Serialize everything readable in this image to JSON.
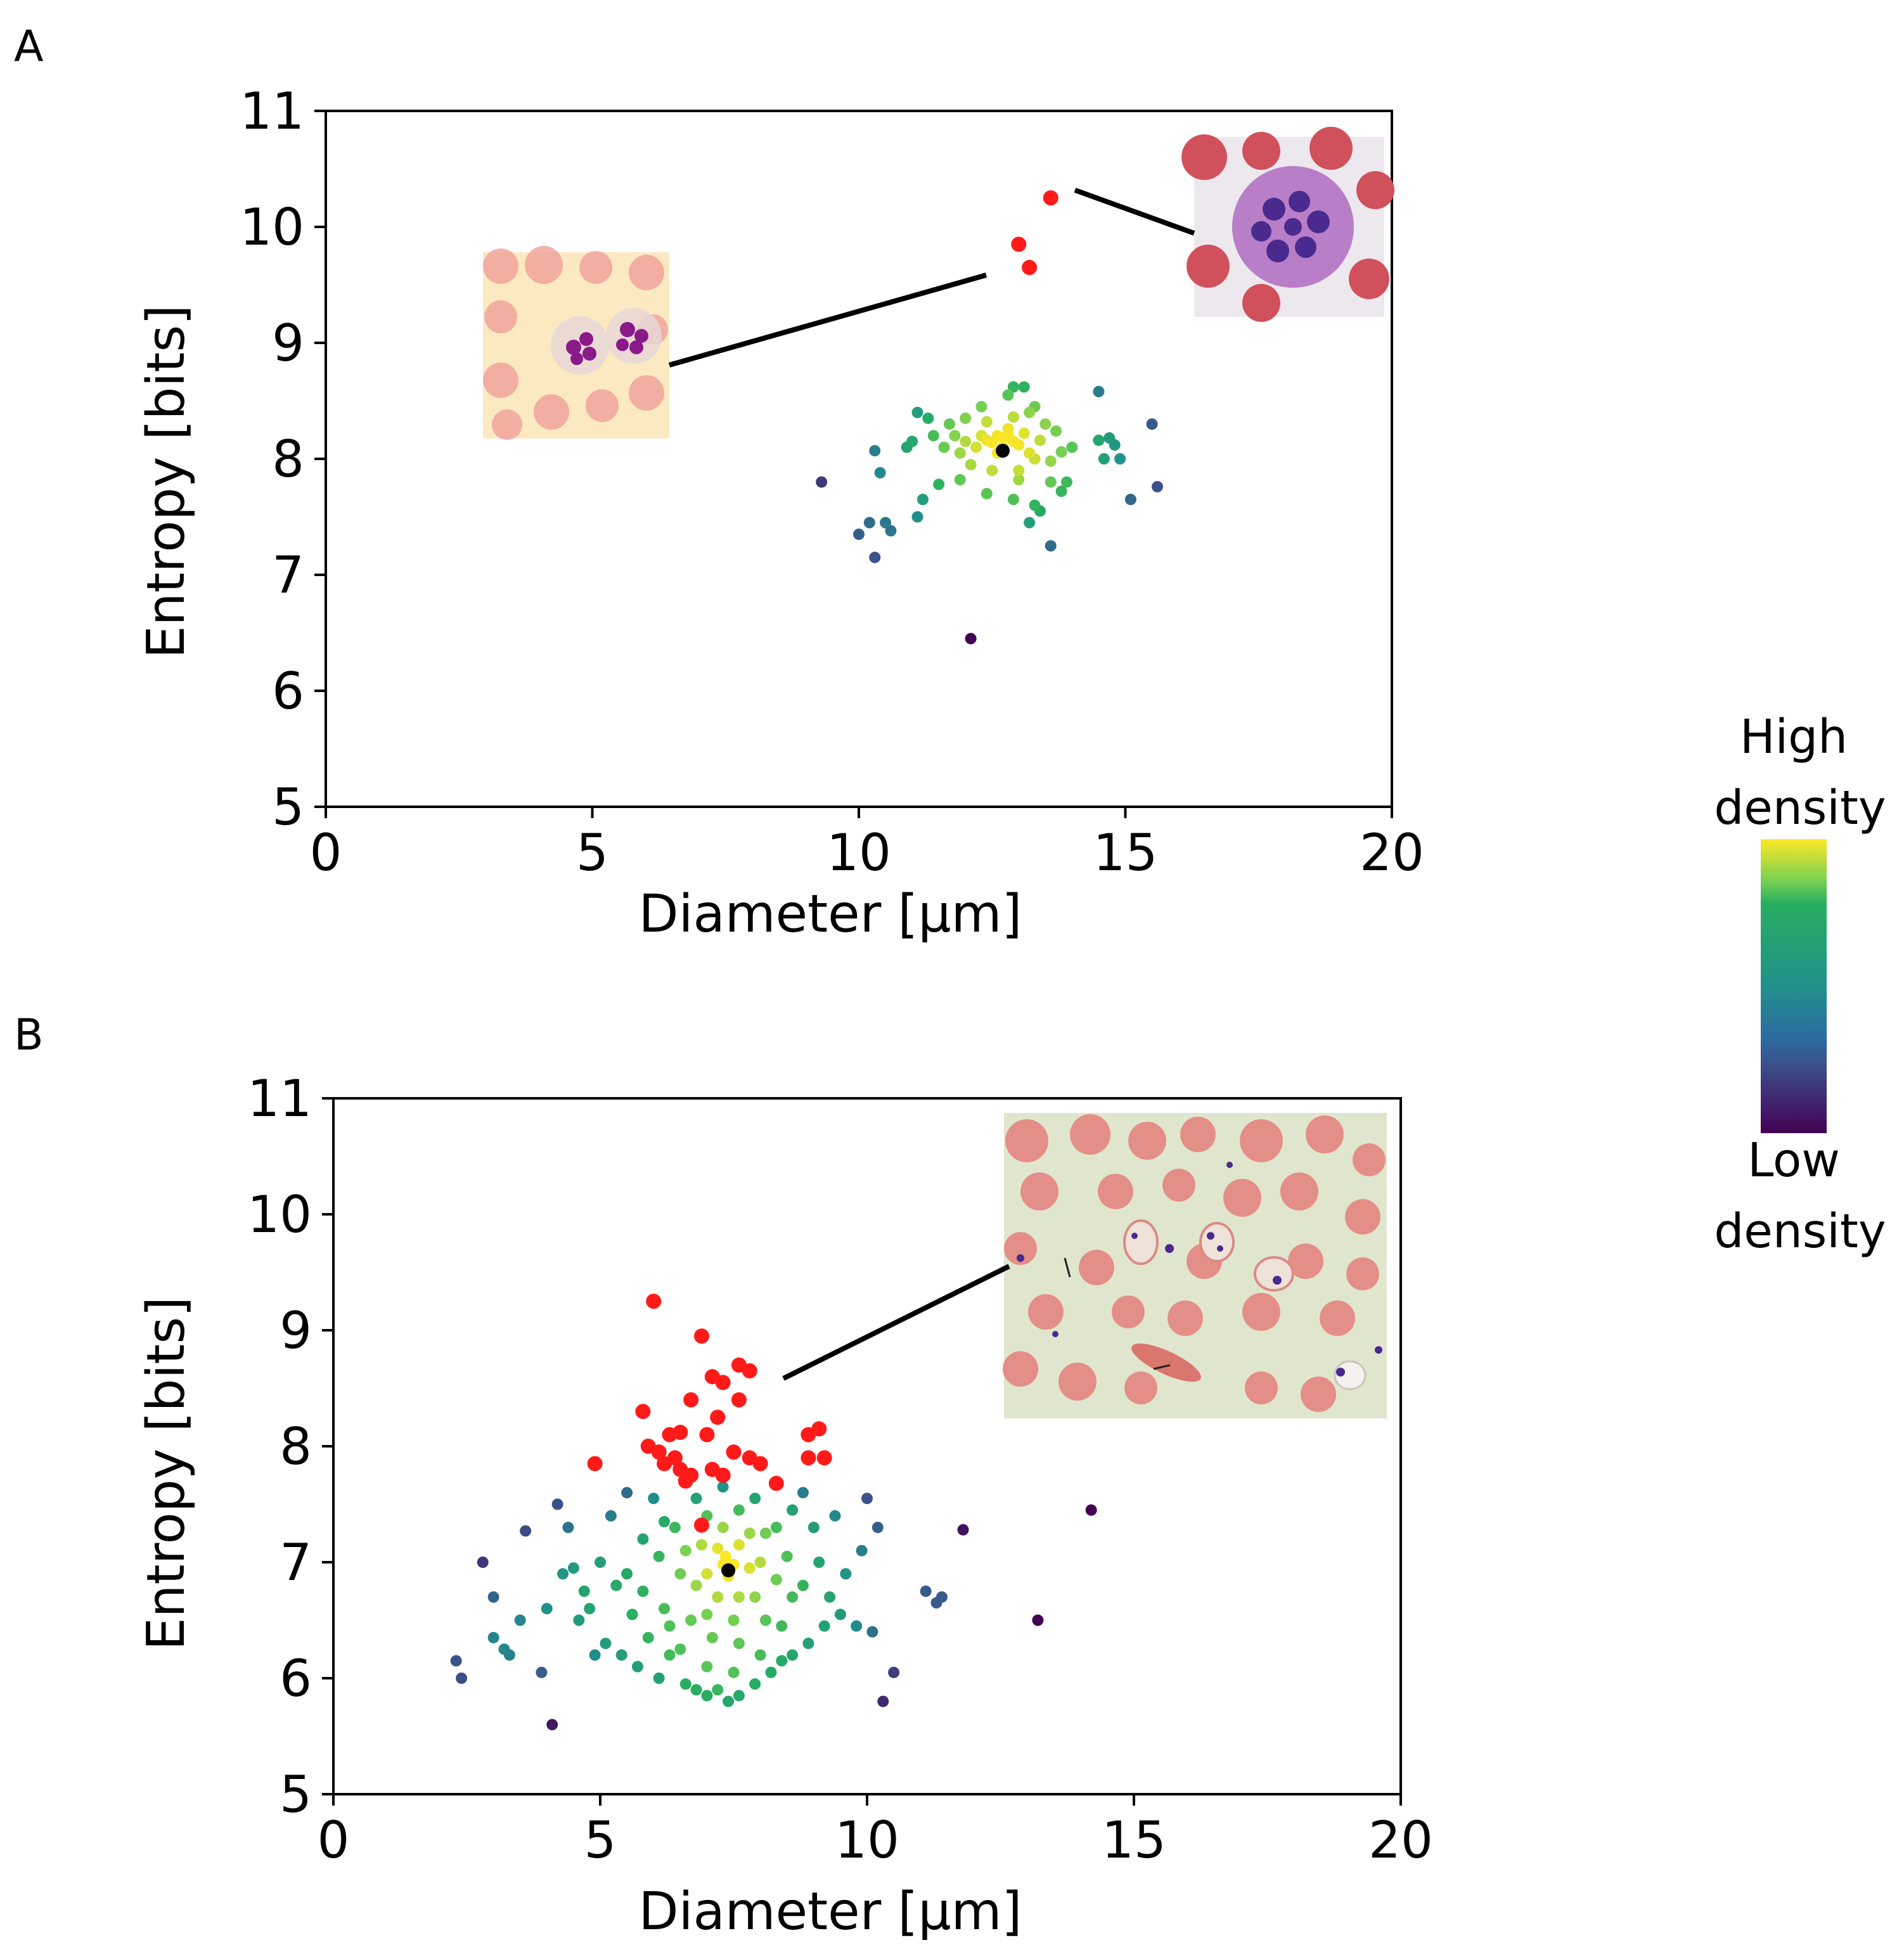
{
  "chart_data": [
    {
      "type": "scatter",
      "panel_label": "A",
      "xlabel": "Diameter [µm]",
      "ylabel": "Entropy [bits]",
      "xlim": [
        0,
        20
      ],
      "ylim": [
        5,
        11
      ],
      "xticks": [
        "0",
        "5",
        "10",
        "15",
        "20"
      ],
      "yticks": [
        "5",
        "6",
        "7",
        "8",
        "9",
        "10",
        "11"
      ],
      "grid": false,
      "series": [
        {
          "points": [
            [
              12.8,
              8.22
            ],
            [
              12.7,
              8.18
            ],
            [
              12.9,
              8.15
            ],
            [
              12.6,
              8.2
            ],
            [
              12.5,
              8.14
            ],
            [
              12.7,
              8.1
            ],
            [
              12.4,
              8.16
            ],
            [
              13.0,
              8.12
            ],
            [
              12.3,
              8.2
            ],
            [
              12.8,
              8.26
            ],
            [
              12.6,
              8.05
            ],
            [
              13.1,
              8.22
            ],
            [
              12.0,
              8.15
            ],
            [
              13.2,
              8.05
            ],
            [
              12.2,
              8.1
            ],
            [
              11.8,
              8.2
            ],
            [
              13.4,
              8.16
            ],
            [
              12.4,
              8.32
            ],
            [
              12.9,
              8.36
            ],
            [
              13.5,
              8.3
            ],
            [
              11.9,
              8.05
            ],
            [
              13.6,
              7.98
            ],
            [
              12.1,
              7.95
            ],
            [
              13.3,
              8.0
            ],
            [
              11.6,
              8.1
            ],
            [
              13.8,
              8.06
            ],
            [
              12.5,
              7.9
            ],
            [
              13.0,
              7.9
            ],
            [
              11.7,
              8.3
            ],
            [
              13.7,
              8.24
            ],
            [
              12.0,
              8.35
            ],
            [
              13.2,
              8.4
            ],
            [
              11.4,
              8.2
            ],
            [
              14.0,
              8.1
            ],
            [
              11.3,
              8.35
            ],
            [
              11.1,
              8.4
            ],
            [
              12.3,
              8.45
            ],
            [
              12.8,
              8.55
            ],
            [
              12.9,
              8.62
            ],
            [
              13.1,
              8.62
            ],
            [
              13.3,
              8.45
            ],
            [
              11.0,
              8.15
            ],
            [
              10.3,
              8.07
            ],
            [
              10.9,
              8.1
            ],
            [
              10.4,
              7.88
            ],
            [
              11.2,
              7.65
            ],
            [
              11.5,
              7.78
            ],
            [
              11.1,
              7.5
            ],
            [
              11.9,
              7.82
            ],
            [
              12.4,
              7.7
            ],
            [
              12.9,
              7.65
            ],
            [
              13.3,
              7.6
            ],
            [
              13.0,
              7.82
            ],
            [
              13.6,
              7.8
            ],
            [
              13.8,
              7.72
            ],
            [
              13.9,
              7.8
            ],
            [
              13.2,
              7.45
            ],
            [
              13.4,
              7.55
            ],
            [
              14.5,
              8.16
            ],
            [
              14.6,
              8.0
            ],
            [
              14.8,
              8.12
            ],
            [
              14.9,
              8.0
            ],
            [
              14.7,
              8.18
            ],
            [
              14.5,
              8.58
            ],
            [
              15.5,
              8.3
            ],
            [
              15.6,
              7.76
            ],
            [
              15.1,
              7.65
            ],
            [
              10.2,
              7.45
            ],
            [
              10.0,
              7.35
            ],
            [
              10.5,
              7.45
            ],
            [
              10.6,
              7.38
            ],
            [
              10.3,
              7.15
            ],
            [
              13.6,
              7.25
            ],
            [
              9.3,
              7.8
            ],
            [
              12.1,
              6.45
            ]
          ]
        },
        {
          "name": "outliers",
          "color": "#ff1a1a",
          "points": [
            [
              13.6,
              10.25
            ],
            [
              13.0,
              9.85
            ],
            [
              13.2,
              9.65
            ]
          ]
        },
        {
          "name": "mean",
          "color": "#000000",
          "points": [
            [
              12.7,
              8.07
            ]
          ]
        }
      ]
    },
    {
      "type": "scatter",
      "panel_label": "B",
      "xlabel": "Diameter [µm]",
      "ylabel": "Entropy [bits]",
      "xlim": [
        0,
        20
      ],
      "ylim": [
        5,
        11
      ],
      "xticks": [
        "0",
        "5",
        "10",
        "15",
        "20"
      ],
      "yticks": [
        "5",
        "6",
        "7",
        "8",
        "9",
        "10",
        "11"
      ],
      "grid": false,
      "series": [
        {
          "points": [
            [
              2.3,
              6.15
            ],
            [
              2.4,
              6.0
            ],
            [
              2.8,
              7.0
            ],
            [
              3.0,
              6.7
            ],
            [
              3.0,
              6.35
            ],
            [
              3.2,
              6.25
            ],
            [
              3.3,
              6.2
            ],
            [
              3.5,
              6.5
            ],
            [
              3.6,
              7.27
            ],
            [
              3.9,
              6.05
            ],
            [
              4.1,
              5.6
            ],
            [
              4.0,
              6.6
            ],
            [
              4.2,
              7.5
            ],
            [
              4.4,
              7.3
            ],
            [
              4.3,
              6.9
            ],
            [
              4.5,
              6.95
            ],
            [
              4.6,
              6.5
            ],
            [
              4.8,
              6.6
            ],
            [
              5.0,
              7.0
            ],
            [
              5.1,
              6.3
            ],
            [
              5.3,
              6.8
            ],
            [
              5.4,
              6.2
            ],
            [
              5.6,
              6.55
            ],
            [
              5.7,
              6.1
            ],
            [
              5.9,
              6.35
            ],
            [
              6.1,
              6.0
            ],
            [
              6.3,
              6.2
            ],
            [
              6.6,
              5.95
            ],
            [
              6.8,
              5.9
            ],
            [
              7.0,
              5.85
            ],
            [
              7.2,
              5.9
            ],
            [
              7.4,
              5.8
            ],
            [
              7.6,
              5.85
            ],
            [
              7.9,
              5.95
            ],
            [
              8.2,
              6.05
            ],
            [
              8.4,
              6.15
            ],
            [
              8.6,
              6.2
            ],
            [
              8.9,
              6.3
            ],
            [
              9.2,
              6.45
            ],
            [
              9.5,
              6.55
            ],
            [
              9.8,
              6.45
            ],
            [
              10.1,
              6.4
            ],
            [
              10.3,
              5.8
            ],
            [
              10.5,
              6.05
            ],
            [
              9.6,
              6.9
            ],
            [
              9.9,
              7.1
            ],
            [
              10.2,
              7.3
            ],
            [
              10.0,
              7.55
            ],
            [
              9.4,
              7.4
            ],
            [
              9.3,
              6.7
            ],
            [
              11.1,
              6.75
            ],
            [
              11.3,
              6.65
            ],
            [
              11.4,
              6.7
            ],
            [
              11.8,
              7.28
            ],
            [
              13.2,
              6.5
            ],
            [
              14.2,
              7.45
            ],
            [
              5.2,
              7.4
            ],
            [
              5.5,
              7.6
            ],
            [
              6.0,
              7.55
            ],
            [
              6.2,
              7.35
            ],
            [
              5.8,
              7.2
            ],
            [
              8.8,
              7.6
            ],
            [
              9.0,
              7.3
            ],
            [
              8.6,
              7.45
            ],
            [
              4.7,
              6.75
            ],
            [
              4.9,
              6.2
            ],
            [
              5.5,
              6.9
            ],
            [
              5.8,
              6.75
            ],
            [
              6.2,
              6.6
            ],
            [
              8.8,
              6.8
            ],
            [
              9.1,
              7.0
            ],
            [
              6.1,
              7.05
            ],
            [
              6.3,
              6.45
            ],
            [
              6.5,
              6.25
            ],
            [
              7.0,
              6.1
            ],
            [
              7.5,
              6.05
            ],
            [
              8.0,
              6.2
            ],
            [
              8.4,
              6.45
            ],
            [
              8.6,
              6.7
            ],
            [
              8.5,
              7.05
            ],
            [
              8.3,
              7.3
            ],
            [
              7.9,
              7.55
            ],
            [
              7.3,
              7.65
            ],
            [
              6.8,
              7.55
            ],
            [
              6.4,
              7.3
            ],
            [
              6.5,
              6.9
            ],
            [
              6.7,
              6.5
            ],
            [
              7.1,
              6.35
            ],
            [
              7.6,
              6.3
            ],
            [
              8.1,
              6.5
            ],
            [
              8.3,
              6.85
            ],
            [
              8.1,
              7.25
            ],
            [
              7.6,
              7.45
            ],
            [
              7.0,
              7.4
            ],
            [
              6.6,
              7.1
            ],
            [
              6.8,
              6.8
            ],
            [
              7.0,
              6.55
            ],
            [
              7.5,
              6.5
            ],
            [
              7.9,
              6.7
            ],
            [
              8.0,
              7.0
            ],
            [
              7.8,
              7.25
            ],
            [
              7.3,
              7.3
            ],
            [
              6.9,
              7.15
            ],
            [
              7.0,
              6.9
            ],
            [
              7.2,
              6.7
            ],
            [
              7.6,
              6.7
            ],
            [
              7.8,
              6.95
            ],
            [
              7.6,
              7.15
            ],
            [
              7.2,
              7.12
            ],
            [
              7.3,
              6.98
            ],
            [
              7.4,
              6.88
            ],
            [
              7.5,
              6.98
            ],
            [
              7.35,
              7.05
            ]
          ]
        },
        {
          "name": "outliers",
          "color": "#ff1a1a",
          "points": [
            [
              6.0,
              9.25
            ],
            [
              6.9,
              8.95
            ],
            [
              7.6,
              8.7
            ],
            [
              7.8,
              8.65
            ],
            [
              7.1,
              8.6
            ],
            [
              7.3,
              8.55
            ],
            [
              7.6,
              8.4
            ],
            [
              6.7,
              8.4
            ],
            [
              5.8,
              8.3
            ],
            [
              7.2,
              8.25
            ],
            [
              9.1,
              8.15
            ],
            [
              6.3,
              8.1
            ],
            [
              7.0,
              8.1
            ],
            [
              8.9,
              8.1
            ],
            [
              6.5,
              8.12
            ],
            [
              6.1,
              7.95
            ],
            [
              6.4,
              7.9
            ],
            [
              5.9,
              8.0
            ],
            [
              7.5,
              7.95
            ],
            [
              7.8,
              7.9
            ],
            [
              8.0,
              7.85
            ],
            [
              8.9,
              7.9
            ],
            [
              9.2,
              7.9
            ],
            [
              4.9,
              7.85
            ],
            [
              6.2,
              7.85
            ],
            [
              6.5,
              7.8
            ],
            [
              7.1,
              7.8
            ],
            [
              6.7,
              7.75
            ],
            [
              7.3,
              7.75
            ],
            [
              6.6,
              7.7
            ],
            [
              8.3,
              7.68
            ],
            [
              6.9,
              7.32
            ]
          ]
        },
        {
          "name": "mean",
          "color": "#000000",
          "points": [
            [
              7.4,
              6.93
            ]
          ]
        }
      ]
    }
  ],
  "colorbar": {
    "high_label_1": "High",
    "high_label_2": "density",
    "low_label_1": "Low",
    "low_label_2": "density",
    "colors": [
      "#fde725",
      "#27ae60",
      "#21918c",
      "#2c6aa0",
      "#3b528b",
      "#440154"
    ]
  },
  "insets": [
    {
      "name": "neutrophil-smear",
      "background": "#fbe9c2",
      "cell_color": "#ef9b95",
      "nucleus_color": "#8a1a8a"
    },
    {
      "name": "eosinophil-cell",
      "background": "#ece8ee",
      "cell_color": "#d0515c",
      "nucleus_color": "#4a2a8e",
      "cytoplasm_color": "#b97ec8"
    },
    {
      "name": "malaria-smear",
      "background": "#e0e6cd",
      "cell_color": "#e48e88",
      "parasite_color": "#4a2a8e"
    }
  ]
}
